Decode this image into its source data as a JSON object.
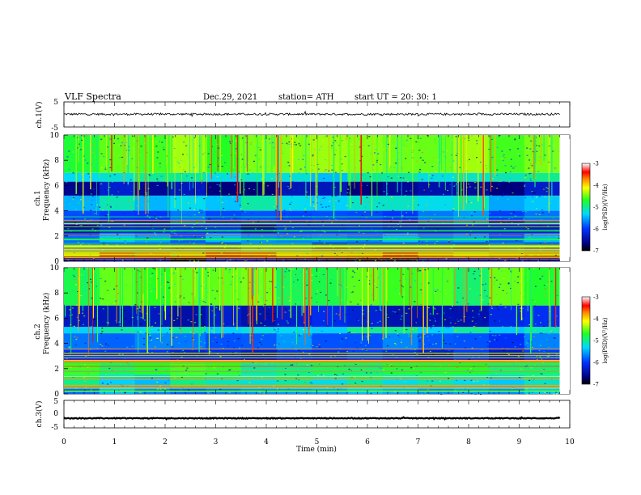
{
  "header": {
    "title": "VLF  Spectra",
    "date": "Dec.29, 2021",
    "station": "station= ATH",
    "start_ut": "start  UT  =    20: 30: 1"
  },
  "chart_data": [
    {
      "type": "line",
      "panel": "ch1-waveform",
      "ylabel": "ch.1(V)",
      "ylim": [
        -5,
        5
      ],
      "yticks": [
        "5",
        "-5"
      ],
      "xlim": [
        0,
        10
      ],
      "x_extent_min": 9.8,
      "baseline": 0.1,
      "noise_amplitude": 0.4
    },
    {
      "type": "heatmap",
      "panel": "ch1-spectrogram",
      "ylabel": "Frequency  (kHz)",
      "ylabel_prefix": "ch.1",
      "ylim": [
        0,
        10
      ],
      "yticks": [
        "10",
        "8",
        "6",
        "4",
        "2",
        "0"
      ],
      "xlim": [
        0,
        10
      ],
      "x_extent_min": 9.8,
      "colorbar": {
        "label": "log(PSD)(V²/Hz)",
        "range": [
          -7,
          -3
        ],
        "ticks": [
          "-3",
          "-4",
          "-5",
          "-6",
          "-7"
        ]
      },
      "bands": [
        {
          "f": [
            7.0,
            10.0
          ],
          "level": -4.6
        },
        {
          "f": [
            6.3,
            7.0
          ],
          "level": -5.2
        },
        {
          "f": [
            5.2,
            6.3
          ],
          "level": -6.5
        },
        {
          "f": [
            4.0,
            5.2
          ],
          "level": -5.3
        },
        {
          "f": [
            3.0,
            4.0
          ],
          "level": -5.8
        },
        {
          "f": [
            2.2,
            3.0
          ],
          "level": -6.3
        },
        {
          "f": [
            1.5,
            2.2
          ],
          "level": -5.6
        },
        {
          "f": [
            0.8,
            1.5
          ],
          "level": -5.9
        },
        {
          "f": [
            0.3,
            0.8
          ],
          "level": -3.8
        },
        {
          "f": [
            0.0,
            0.3
          ],
          "level": -6.8
        }
      ]
    },
    {
      "type": "heatmap",
      "panel": "ch2-spectrogram",
      "ylabel": "Frequency  (kHz)",
      "ylabel_prefix": "ch.2",
      "ylim": [
        0,
        10
      ],
      "yticks": [
        "10",
        "8",
        "6",
        "4",
        "2",
        "0"
      ],
      "xlim": [
        0,
        10
      ],
      "x_extent_min": 9.8,
      "colorbar": {
        "label": "log(PSD)(V²/Hz)",
        "range": [
          -7,
          -3
        ],
        "ticks": [
          "-3",
          "-4",
          "-5",
          "-6",
          "-7"
        ]
      },
      "bands": [
        {
          "f": [
            7.0,
            10.0
          ],
          "level": -4.7
        },
        {
          "f": [
            5.3,
            7.0
          ],
          "level": -6.3
        },
        {
          "f": [
            4.8,
            5.3
          ],
          "level": -5.2
        },
        {
          "f": [
            3.5,
            4.8
          ],
          "level": -5.8
        },
        {
          "f": [
            2.5,
            3.5
          ],
          "level": -6.1
        },
        {
          "f": [
            1.5,
            2.5
          ],
          "level": -4.8
        },
        {
          "f": [
            0.5,
            1.5
          ],
          "level": -5.2
        },
        {
          "f": [
            0.0,
            0.5
          ],
          "level": -5.6
        }
      ]
    },
    {
      "type": "line",
      "panel": "ch3-waveform",
      "ylabel": "ch.3(V)",
      "ylim": [
        -5,
        5
      ],
      "yticks": [
        "5",
        "0",
        "-5"
      ],
      "xlim": [
        0,
        10
      ],
      "x_extent_min": 9.8,
      "baseline": -1.5,
      "noise_amplitude": 0.15,
      "xlabel": "Time  (min)",
      "xticks": [
        "0",
        "1",
        "2",
        "3",
        "4",
        "5",
        "6",
        "7",
        "8",
        "9",
        "10"
      ]
    }
  ]
}
